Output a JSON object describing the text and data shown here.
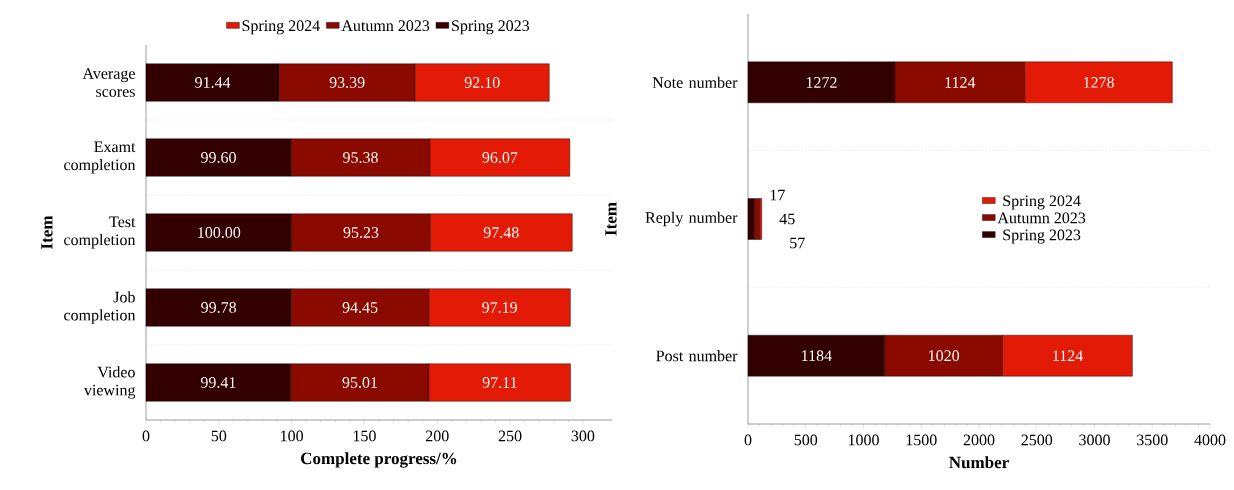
{
  "chart_data": [
    {
      "type": "bar",
      "orientation": "horizontal",
      "stacked": true,
      "categories": [
        "Average scores",
        "Examt completion",
        "Test completion",
        "Job completion",
        "Video viewing"
      ],
      "xlabel": "Complete progress/%",
      "ylabel": "Item",
      "xlim": [
        0,
        320
      ],
      "xticks": [
        0,
        50,
        100,
        150,
        200,
        250,
        300
      ],
      "grid": "y",
      "legend": "top",
      "series": [
        {
          "name": "Spring 2023",
          "color": "#330000",
          "values": [
            91.44,
            99.6,
            100.0,
            99.78,
            99.41
          ],
          "value_labels": [
            "91.44",
            "99.60",
            "100.00",
            "99.78",
            "99.41"
          ]
        },
        {
          "name": "Autumn 2023",
          "color": "#8b0a00",
          "values": [
            93.39,
            95.38,
            95.23,
            94.45,
            95.01
          ],
          "value_labels": [
            "93.39",
            "95.38",
            "95.23",
            "94.45",
            "95.01"
          ]
        },
        {
          "name": "Spring 2024",
          "color": "#e31a06",
          "values": [
            92.1,
            96.07,
            97.48,
            97.19,
            97.11
          ],
          "value_labels": [
            "92.10",
            "96.07",
            "97.48",
            "97.19",
            "97.11"
          ]
        }
      ]
    },
    {
      "type": "bar",
      "orientation": "horizontal",
      "stacked": true,
      "categories": [
        "Note number",
        "Reply number",
        "Post number"
      ],
      "xlabel": "Number",
      "ylabel": "Item",
      "xlim": [
        0,
        4000
      ],
      "xticks": [
        0,
        500,
        1000,
        1500,
        2000,
        2500,
        3000,
        3500,
        4000
      ],
      "grid": "y",
      "legend": "right",
      "series": [
        {
          "name": "Spring 2023",
          "color": "#330000",
          "values": [
            1272,
            57,
            1184
          ],
          "value_labels": [
            "1272",
            "57",
            "1184"
          ]
        },
        {
          "name": "Autumn 2023",
          "color": "#8b0a00",
          "values": [
            1124,
            45,
            1020
          ],
          "value_labels": [
            "1124",
            "45",
            "1020"
          ]
        },
        {
          "name": "Spring 2024",
          "color": "#e31a06",
          "values": [
            1278,
            17,
            1124
          ],
          "value_labels": [
            "1278",
            "17",
            "1124"
          ]
        }
      ]
    }
  ]
}
